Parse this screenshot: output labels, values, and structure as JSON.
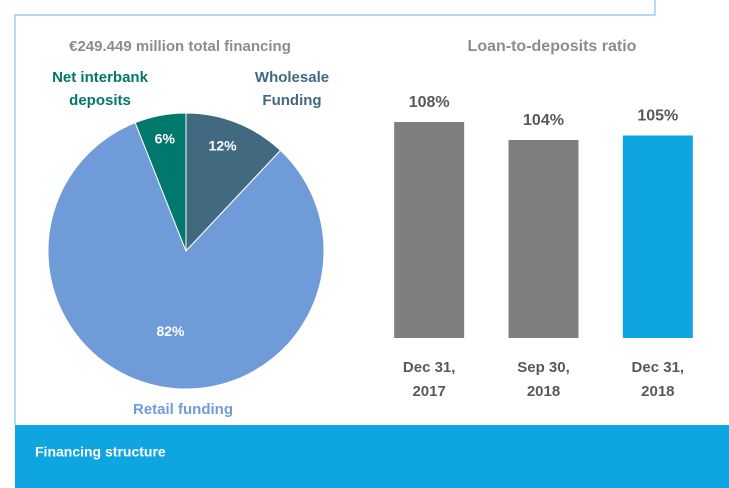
{
  "footer": "Financing structure",
  "chart_data": [
    {
      "type": "pie",
      "title": "€249.449 million total financing",
      "categories": [
        [
          "Wholesale",
          "Funding"
        ],
        [
          "Retail funding"
        ],
        [
          "Net interbank",
          "deposits"
        ]
      ],
      "values": [
        12,
        82,
        6
      ],
      "value_labels": [
        "12%",
        "82%",
        "6%"
      ],
      "colors": [
        "#41697f",
        "#6f9bd9",
        "#00786c"
      ]
    },
    {
      "type": "bar",
      "title": "Loan-to-deposits ratio",
      "categories": [
        [
          "Dec 31,",
          "2017"
        ],
        [
          "Sep 30,",
          "2018"
        ],
        [
          "Dec 31,",
          "2018"
        ]
      ],
      "values": [
        108,
        104,
        105
      ],
      "value_labels": [
        "108%",
        "104%",
        "105%"
      ],
      "colors": [
        "#7f7f7f",
        "#7f7f7f",
        "#0ea5e0"
      ],
      "ylim": [
        60,
        120
      ]
    }
  ]
}
